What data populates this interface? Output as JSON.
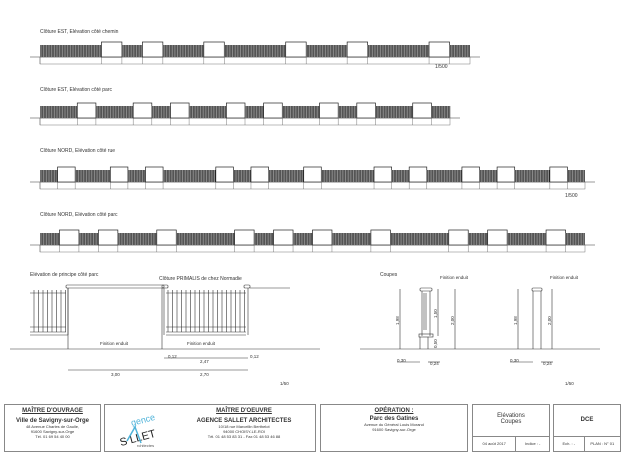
{
  "elevations": [
    {
      "title": "Clôture EST, Elévation côté chemin",
      "scale": "1/500"
    },
    {
      "title": "Clôture EST, Elévation côté parc",
      "scale": ""
    },
    {
      "title": "Clôture NORD, Elévation côté rue",
      "scale": "1/500"
    },
    {
      "title": "Clôture NORD, Elévation côté parc",
      "scale": ""
    }
  ],
  "detail": {
    "title": "Elévation de principe côté parc",
    "product_label": "Clôture PRIMALIS de chez Normadie",
    "finish_left": "Finition enduit",
    "finish_right": "Finition enduit",
    "dims": {
      "post_left": "0,12",
      "panel": "2,47",
      "post_right": "0,12",
      "wall": "3,00",
      "bay": "2,70"
    },
    "scale": "1/50"
  },
  "sections": {
    "title": "Coupes",
    "finish_1": "Finition enduit",
    "finish_2": "Finition enduit",
    "dims_1": {
      "h_total": "1,98",
      "h_fence": "1,50",
      "h_post": "2,00",
      "h_base": "0,50",
      "w_base": "0,30",
      "w_post": "0,24"
    },
    "dims_2": {
      "h_total": "1,98",
      "h_post": "2,00",
      "w_base": "0,30",
      "w_post": "0,24"
    },
    "scale": "1/50"
  },
  "title_block": {
    "owner_heading": "MAÎTRE D'OUVRAGE",
    "owner_name": "Ville de Savigny-sur-Orge",
    "owner_address": "48 Avenue Charles de Gaulle,",
    "owner_city": "91600 Savigny-sur-Orge",
    "owner_tel": "Tél. 01 69 54 40 00",
    "logo_text": "agence SALLET architectes",
    "logo_color": "#4fb3d9",
    "architect_heading": "MAÎTRE D'OEUVRE",
    "architect_name": "AGENCE SALLET ARCHITECTES",
    "architect_address": "10/18 rue Marcellin Berthelot",
    "architect_city": "94000 CHOISY-LE-ROI",
    "architect_tel": "Tél. 01 48 53 83 31 - Fax 01 48 53 46 88",
    "operation_heading": "OPÉRATION :",
    "operation_name": "Parc des Gatines",
    "operation_address": "Avenue du Général Louis Morand",
    "operation_city": "91600 Savigny-sur-Orge",
    "sheet_title_1": "Elévations",
    "sheet_title_2": "Coupes",
    "date": "04 août 2017",
    "index": "Indice : -",
    "phase": "DCE",
    "scale": "Ech. : -",
    "plan": "PLAN : N° 01"
  }
}
